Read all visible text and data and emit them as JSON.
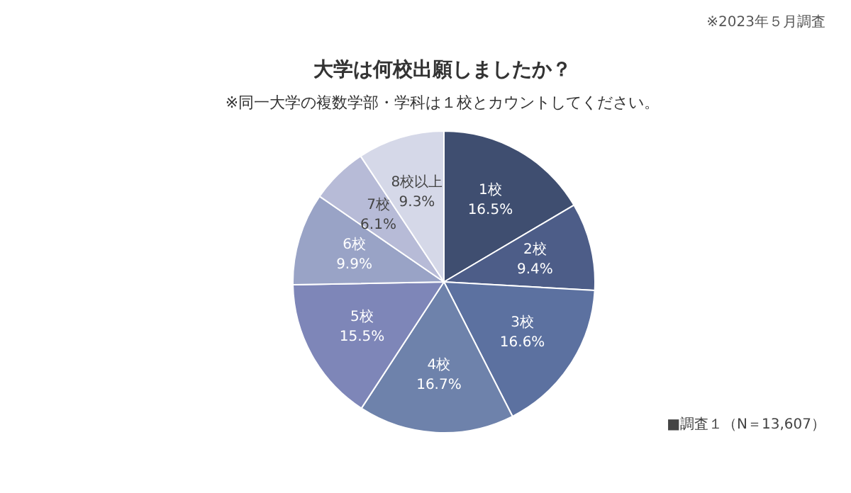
{
  "chart_data": {
    "type": "pie",
    "title": "大学は何校出願しましたか？",
    "subtitle": "※同一大学の複数学部・学科は１校とカウントしてください。",
    "categories": [
      "1校",
      "2校",
      "3校",
      "4校",
      "5校",
      "6校",
      "7校",
      "8校以上"
    ],
    "values": [
      16.5,
      9.4,
      16.6,
      16.7,
      15.5,
      9.9,
      6.1,
      9.3
    ],
    "colors": [
      "#3f4e70",
      "#4d5d88",
      "#5c71a0",
      "#6e82ab",
      "#7e86b8",
      "#99a3c6",
      "#b7bbd7",
      "#d5d8e8"
    ],
    "value_labels": [
      "16.5%",
      "9.4%",
      "16.6%",
      "16.7%",
      "15.5%",
      "9.9%",
      "6.1%",
      "9.3%"
    ],
    "annotations": [
      "※2023年５月調査",
      "■調査１（N＝13,607）"
    ]
  }
}
